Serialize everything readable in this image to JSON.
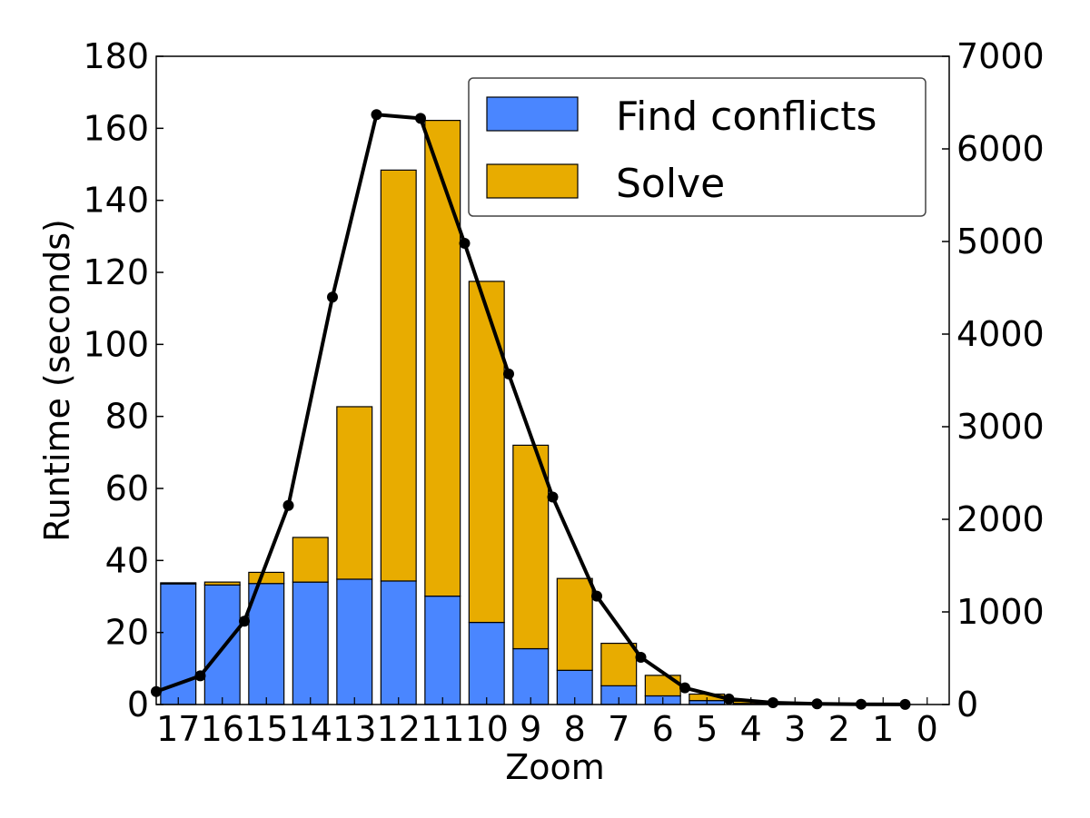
{
  "chart_data": {
    "type": "bar",
    "stacked": true,
    "categories": [
      "17",
      "16",
      "15",
      "14",
      "13",
      "12",
      "11",
      "10",
      "9",
      "8",
      "7",
      "6",
      "5",
      "4",
      "3",
      "2",
      "1",
      "0"
    ],
    "xlabel": "Zoom",
    "ylabel": "Runtime (seconds)",
    "ylim": [
      0,
      180
    ],
    "yticks": [
      0,
      20,
      40,
      60,
      80,
      100,
      120,
      140,
      160,
      180
    ],
    "y2lim": [
      0,
      7000
    ],
    "y2ticks": [
      0,
      1000,
      2000,
      3000,
      4000,
      5000,
      6000,
      7000
    ],
    "legend": {
      "position": "top-right"
    },
    "series": [
      {
        "name": "Find conflicts",
        "color": "#4a86ff",
        "values": [
          33.5,
          33.2,
          33.6,
          34.0,
          34.8,
          34.3,
          30.1,
          22.8,
          15.5,
          9.5,
          5.2,
          2.4,
          1.1,
          0.3,
          0.1,
          0.0,
          0.0,
          0.0
        ]
      },
      {
        "name": "Solve",
        "color": "#e8ac00",
        "values": [
          0.3,
          0.8,
          3.1,
          12.4,
          47.9,
          114.1,
          132.1,
          94.7,
          56.5,
          25.5,
          11.8,
          5.7,
          1.8,
          0.6,
          0.2,
          0.1,
          0.0,
          0.0
        ]
      }
    ],
    "line": {
      "axis": "y2",
      "color": "#000000",
      "x_offset_in_bins": -0.5,
      "values": [
        140,
        310,
        900,
        2150,
        4400,
        6370,
        6330,
        4980,
        3570,
        2240,
        1170,
        510,
        180,
        60,
        20,
        7,
        3,
        1
      ]
    }
  }
}
